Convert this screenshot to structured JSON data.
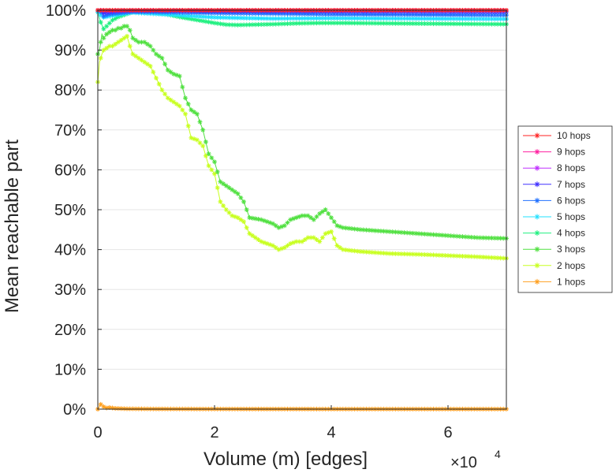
{
  "chart_data": {
    "type": "line",
    "title": "",
    "xlabel": "Volume (m) [edges]",
    "ylabel": "Mean reachable part",
    "x_multiplier_label": {
      "base": "×10",
      "exponent": "4"
    },
    "xlim": [
      0,
      70000
    ],
    "ylim": [
      0,
      100
    ],
    "x_ticks": [
      0,
      20000,
      40000,
      60000
    ],
    "x_tick_labels": [
      "0",
      "2",
      "4",
      "6"
    ],
    "y_ticks": [
      0,
      10,
      20,
      30,
      40,
      50,
      60,
      70,
      80,
      90,
      100
    ],
    "y_tick_labels": [
      "0%",
      "10%",
      "20%",
      "30%",
      "40%",
      "50%",
      "60%",
      "70%",
      "80%",
      "90%",
      "100%"
    ],
    "grid": true,
    "legend_position": "right",
    "marker": "asterisk",
    "series": [
      {
        "name": "10 hops",
        "color": "#ff2020",
        "x": [
          0,
          500,
          2000,
          6000,
          20000,
          40000,
          70000
        ],
        "y": [
          100,
          100,
          100,
          100,
          100,
          100,
          100
        ]
      },
      {
        "name": "9 hops",
        "color": "#ff20a0",
        "x": [
          0,
          500,
          2000,
          6000,
          20000,
          40000,
          70000
        ],
        "y": [
          100,
          100,
          100,
          100,
          100,
          100,
          100
        ]
      },
      {
        "name": "8 hops",
        "color": "#c030ff",
        "x": [
          0,
          500,
          2000,
          6000,
          20000,
          40000,
          70000
        ],
        "y": [
          100,
          100,
          99.9,
          100,
          100,
          100,
          100
        ]
      },
      {
        "name": "7 hops",
        "color": "#4030ff",
        "x": [
          0,
          500,
          1000,
          3000,
          6000,
          20000,
          40000,
          70000
        ],
        "y": [
          100,
          100,
          99.3,
          99.7,
          99.9,
          99.8,
          99.7,
          99.6
        ]
      },
      {
        "name": "6 hops",
        "color": "#2070ff",
        "x": [
          0,
          500,
          1000,
          2000,
          4000,
          6000,
          20000,
          40000,
          70000
        ],
        "y": [
          100,
          99.5,
          98.5,
          99.0,
          99.3,
          99.6,
          99.3,
          99.0,
          98.8
        ]
      },
      {
        "name": "5 hops",
        "color": "#20e0ff",
        "x": [
          0,
          500,
          1000,
          2000,
          4000,
          6000,
          12000,
          20000,
          30000,
          40000,
          55000,
          70000
        ],
        "y": [
          99.5,
          98.8,
          98.2,
          98.5,
          99.0,
          99.4,
          98.9,
          98.2,
          97.9,
          98.0,
          97.9,
          97.8
        ]
      },
      {
        "name": "4 hops",
        "color": "#20f080",
        "x": [
          0,
          500,
          1000,
          1500,
          2500,
          3500,
          4500,
          5500,
          6000,
          8000,
          10000,
          12000,
          14000,
          16000,
          18000,
          20000,
          22000,
          24000,
          27000,
          30000,
          34000,
          38000,
          42000,
          50000,
          60000,
          70000
        ],
        "y": [
          99.5,
          97.0,
          95.3,
          96.0,
          97.5,
          98.3,
          98.8,
          99.3,
          100,
          99.8,
          99.4,
          98.9,
          98.3,
          97.8,
          97.3,
          96.8,
          96.4,
          96.3,
          96.4,
          96.5,
          96.7,
          96.8,
          96.8,
          96.7,
          96.6,
          96.5
        ]
      },
      {
        "name": "3 hops",
        "color": "#50e040",
        "x": [
          0,
          300,
          700,
          1000,
          1500,
          2000,
          2500,
          3000,
          3500,
          4000,
          4500,
          5000,
          5500,
          6000,
          7000,
          8000,
          9000,
          10000,
          11000,
          12000,
          13000,
          14000,
          15000,
          16000,
          17000,
          18000,
          19000,
          20000,
          21000,
          22000,
          23000,
          24000,
          25000,
          26000,
          28000,
          30000,
          31000,
          32000,
          33000,
          34000,
          35000,
          36000,
          37000,
          38000,
          39000,
          40000,
          41000,
          42000,
          45000,
          50000,
          55000,
          60000,
          65000,
          70000
        ],
        "y": [
          89,
          90,
          94,
          93,
          94,
          94.5,
          95,
          95,
          95.5,
          95.5,
          96,
          96,
          95,
          93,
          92,
          92,
          91,
          89,
          88,
          85,
          84,
          83.5,
          78,
          75,
          74,
          70,
          64,
          62,
          57,
          56,
          55,
          54,
          52,
          48,
          47.5,
          46.5,
          45.5,
          46,
          47.5,
          48,
          48.5,
          48.5,
          47.5,
          49,
          50,
          48,
          46,
          45.5,
          45,
          44.5,
          44,
          43.5,
          43,
          42.8
        ]
      },
      {
        "name": "2 hops",
        "color": "#c8ff20",
        "x": [
          0,
          300,
          700,
          1000,
          1500,
          2000,
          2500,
          3000,
          3500,
          4000,
          4500,
          5000,
          5500,
          6000,
          7000,
          8000,
          9000,
          10000,
          11000,
          12000,
          13000,
          14000,
          15000,
          16000,
          17000,
          18000,
          19000,
          20000,
          21000,
          22000,
          23000,
          24000,
          25000,
          26000,
          28000,
          30000,
          31000,
          32000,
          33000,
          34000,
          35000,
          36000,
          37000,
          38000,
          39000,
          40000,
          41000,
          42000,
          45000,
          50000,
          55000,
          60000,
          65000,
          70000
        ],
        "y": [
          82,
          87,
          89,
          90,
          90.5,
          91,
          91,
          91.5,
          92,
          92.5,
          93,
          93.5,
          91,
          89,
          88,
          87,
          86,
          83,
          80,
          78,
          77,
          76,
          74,
          68,
          67.5,
          66,
          61,
          59,
          52,
          50,
          48.5,
          48,
          47,
          44,
          42,
          41,
          40,
          40.5,
          41.5,
          42,
          42,
          43,
          43,
          42,
          44,
          44.5,
          41,
          40,
          39.5,
          39,
          38.8,
          38.5,
          38.2,
          37.8
        ]
      },
      {
        "name": "1 hops",
        "color": "#ffa020",
        "x": [
          0,
          500,
          1000,
          1500,
          2000,
          3000,
          5000,
          10000,
          20000,
          40000,
          70000
        ],
        "y": [
          0,
          1.2,
          0.6,
          0.3,
          0.4,
          0.2,
          0.1,
          0.05,
          0.03,
          0.02,
          0.02
        ]
      }
    ]
  }
}
